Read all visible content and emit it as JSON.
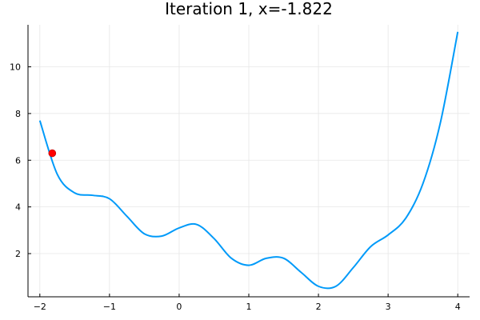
{
  "chart_data": {
    "type": "line",
    "title": "Iteration 1, x=-1.822",
    "xlabel": "",
    "ylabel": "",
    "xlim": [
      -2.17,
      4.17
    ],
    "ylim": [
      0.15,
      11.8
    ],
    "x_ticks": [
      -2,
      -1,
      0,
      1,
      2,
      3,
      4
    ],
    "x_tick_labels": [
      "−2",
      "−1",
      "0",
      "1",
      "2",
      "3",
      "4"
    ],
    "y_ticks": [
      2,
      4,
      6,
      8,
      10
    ],
    "y_tick_labels": [
      "2",
      "4",
      "6",
      "8",
      "10"
    ],
    "grid": true,
    "legend": "none",
    "series": [
      {
        "color": "#009af9",
        "x": [
          -2.0,
          -1.75,
          -1.5,
          -1.25,
          -1.0,
          -0.75,
          -0.5,
          -0.25,
          0.0,
          0.25,
          0.5,
          0.75,
          1.0,
          1.25,
          1.5,
          1.75,
          2.0,
          2.25,
          2.5,
          2.75,
          3.0,
          3.25,
          3.5,
          3.75,
          4.0
        ],
        "y": [
          7.7,
          5.4,
          4.6,
          4.5,
          4.35,
          3.6,
          2.85,
          2.75,
          3.1,
          3.25,
          2.65,
          1.8,
          1.5,
          1.8,
          1.8,
          1.2,
          0.6,
          0.6,
          1.4,
          2.3,
          2.8,
          3.5,
          5.0,
          7.6,
          11.5
        ]
      }
    ],
    "marker": {
      "x": -1.822,
      "y": 6.3,
      "color": "#ff0000"
    }
  }
}
